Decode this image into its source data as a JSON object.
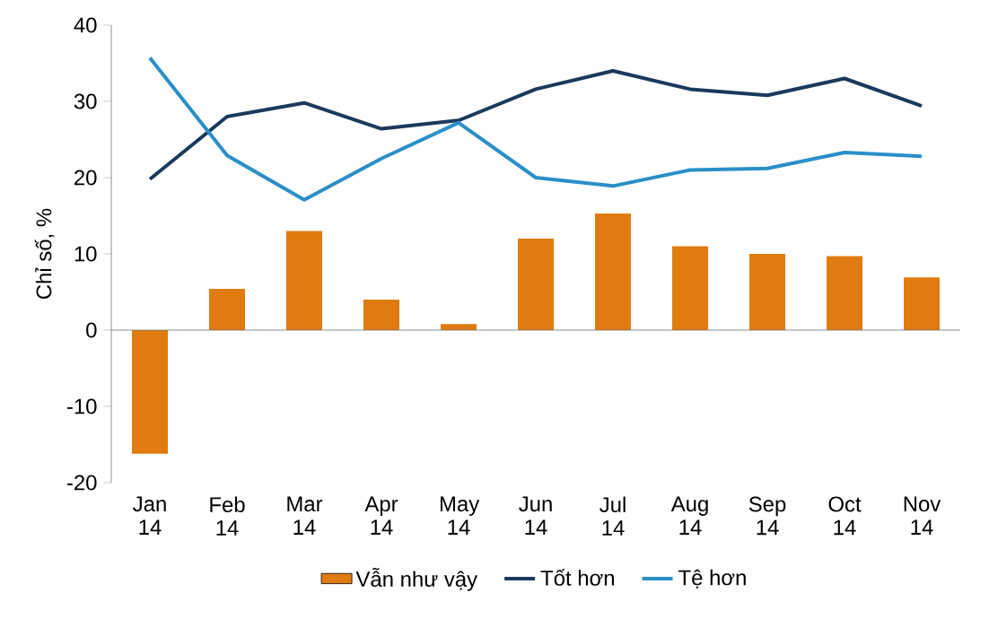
{
  "chart_data": {
    "type": "bar",
    "ylabel": "Chỉ số, %",
    "categories": [
      "Jan 14",
      "Feb 14",
      "Mar 14",
      "Apr 14",
      "May 14",
      "Jun 14",
      "Jul 14",
      "Aug 14",
      "Sep 14",
      "Oct 14",
      "Nov 14"
    ],
    "series": [
      {
        "name": "Vẫn như vậy",
        "color": "#e07b10",
        "values": [
          -16.2,
          5.4,
          13,
          4,
          0.8,
          12,
          15.3,
          11,
          10,
          9.7,
          6.9
        ]
      },
      {
        "name": "Tốt hơn",
        "type": "line",
        "color": "#1a3a5c",
        "values": [
          19.8,
          28,
          29.8,
          26.4,
          27.5,
          31.6,
          34,
          31.6,
          30.8,
          33,
          29.4
        ]
      },
      {
        "name": "Tệ hơn",
        "type": "line",
        "color": "#2a8fc8",
        "values": [
          35.7,
          22.9,
          17.1,
          22.5,
          27.2,
          20,
          18.9,
          21,
          21.2,
          23.3,
          22.8
        ]
      }
    ],
    "ylim": [
      -20,
      40
    ],
    "yticks": [
      -20,
      -10,
      0,
      10,
      20,
      30,
      40
    ],
    "legend": "bottom"
  }
}
